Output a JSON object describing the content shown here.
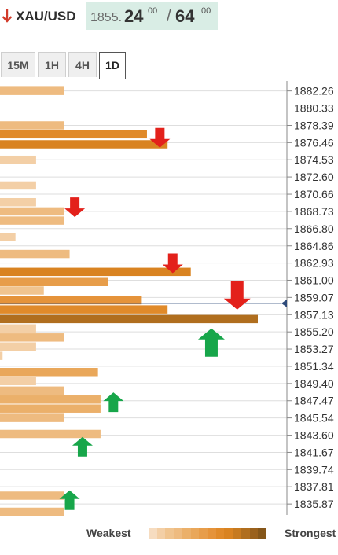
{
  "header": {
    "pair": "XAU/USD",
    "direction": "down",
    "price_prefix": "1855.",
    "price_big_1": "24",
    "price_sup_1": "00",
    "slash": "/",
    "price_big_2": "64",
    "price_sup_2": "00"
  },
  "tabs": [
    {
      "label": "15M",
      "active": false
    },
    {
      "label": "1H",
      "active": false
    },
    {
      "label": "4H",
      "active": false
    },
    {
      "label": "1D",
      "active": true
    }
  ],
  "legend": {
    "weakest": "Weakest",
    "strongest": "Strongest",
    "scale_colors": [
      "#f6dcc0",
      "#f3cfa6",
      "#f0c48f",
      "#eebb80",
      "#ebb06a",
      "#e9a75a",
      "#e79d4a",
      "#e5933a",
      "#e08a2a",
      "#d98321",
      "#c77a1f",
      "#b06e1e",
      "#9a611c",
      "#855619"
    ]
  },
  "chart_data": {
    "type": "bar",
    "orientation": "horizontal",
    "title": "",
    "current_price": 1858.4,
    "y_ticks": [
      "1882.26",
      "1880.33",
      "1878.39",
      "1876.46",
      "1874.53",
      "1872.60",
      "1870.66",
      "1868.73",
      "1866.80",
      "1864.86",
      "1862.93",
      "1861.00",
      "1859.07",
      "1857.13",
      "1855.20",
      "1853.27",
      "1851.34",
      "1849.40",
      "1847.47",
      "1845.54",
      "1843.60",
      "1841.67",
      "1839.74",
      "1837.81",
      "1835.87"
    ],
    "ylim": [
      1835.0,
      1883.2
    ],
    "bar_value_max": 100,
    "bars": [
      {
        "price": 1882.26,
        "value": 25,
        "strength": 3
      },
      {
        "price": 1878.39,
        "value": 25,
        "strength": 3
      },
      {
        "price": 1877.39,
        "value": 57,
        "strength": 8
      },
      {
        "price": 1876.27,
        "value": 65,
        "strength": 9
      },
      {
        "price": 1874.53,
        "value": 14,
        "strength": 1
      },
      {
        "price": 1871.64,
        "value": 14,
        "strength": 1
      },
      {
        "price": 1869.76,
        "value": 14,
        "strength": 1
      },
      {
        "price": 1868.73,
        "value": 25,
        "strength": 3
      },
      {
        "price": 1867.7,
        "value": 25,
        "strength": 3
      },
      {
        "price": 1865.85,
        "value": 6,
        "strength": 1
      },
      {
        "price": 1863.95,
        "value": 27,
        "strength": 3
      },
      {
        "price": 1861.94,
        "value": 74,
        "strength": 9
      },
      {
        "price": 1860.8,
        "value": 42,
        "strength": 6
      },
      {
        "price": 1859.85,
        "value": 17,
        "strength": 2
      },
      {
        "price": 1858.75,
        "value": 55,
        "strength": 7
      },
      {
        "price": 1857.72,
        "value": 65,
        "strength": 8
      },
      {
        "price": 1856.64,
        "value": 100,
        "strength": 11
      },
      {
        "price": 1855.59,
        "value": 14,
        "strength": 1
      },
      {
        "price": 1854.57,
        "value": 25,
        "strength": 3
      },
      {
        "price": 1853.56,
        "value": 14,
        "strength": 1
      },
      {
        "price": 1852.51,
        "value": 1,
        "strength": 1
      },
      {
        "price": 1850.69,
        "value": 38,
        "strength": 5
      },
      {
        "price": 1849.67,
        "value": 14,
        "strength": 1
      },
      {
        "price": 1848.61,
        "value": 25,
        "strength": 3
      },
      {
        "price": 1847.6,
        "value": 39,
        "strength": 4
      },
      {
        "price": 1846.59,
        "value": 39,
        "strength": 4
      },
      {
        "price": 1845.54,
        "value": 25,
        "strength": 3
      },
      {
        "price": 1843.74,
        "value": 39,
        "strength": 3
      },
      {
        "price": 1836.81,
        "value": 25,
        "strength": 3
      },
      {
        "price": 1835.0,
        "value": 25,
        "strength": 3
      }
    ],
    "arrows": [
      {
        "direction": "down",
        "color": "red",
        "price": 1877.0,
        "value": 62
      },
      {
        "direction": "down",
        "color": "red",
        "price": 1869.2,
        "value": 29
      },
      {
        "direction": "down",
        "color": "red",
        "price": 1862.9,
        "value": 67
      },
      {
        "direction": "down",
        "color": "red",
        "price": 1859.3,
        "value": 92
      },
      {
        "direction": "up",
        "color": "green",
        "price": 1854.0,
        "value": 82
      },
      {
        "direction": "up",
        "color": "green",
        "price": 1847.3,
        "value": 44
      },
      {
        "direction": "up",
        "color": "green",
        "price": 1842.3,
        "value": 32
      },
      {
        "direction": "up",
        "color": "green",
        "price": 1836.3,
        "value": 27
      }
    ],
    "grid": true
  }
}
